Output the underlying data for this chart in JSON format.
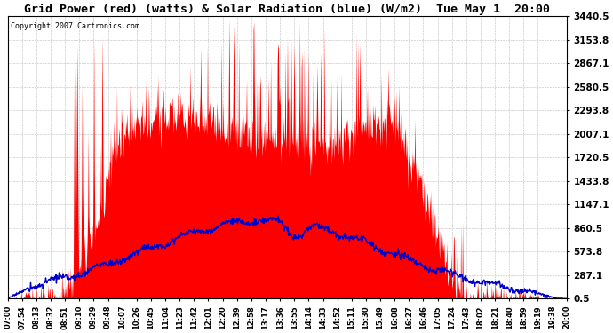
{
  "title": "Grid Power (red) (watts) & Solar Radiation (blue) (W/m2)  Tue May 1  20:00",
  "copyright_text": "Copyright 2007 Cartronics.com",
  "bg_color": "#ffffff",
  "plot_bg_color": "#ffffff",
  "grid_color": "#aaaaaa",
  "red_color": "#ff0000",
  "blue_color": "#0000cc",
  "yticks": [
    0.5,
    287.1,
    573.8,
    860.5,
    1147.1,
    1433.8,
    1720.5,
    2007.1,
    2293.8,
    2580.5,
    2867.1,
    3153.8,
    3440.5
  ],
  "ymin": 0.5,
  "ymax": 3440.5,
  "xtick_labels": [
    "07:00",
    "07:54",
    "08:13",
    "08:32",
    "08:51",
    "09:10",
    "09:29",
    "09:48",
    "10:07",
    "10:26",
    "10:45",
    "11:04",
    "11:23",
    "11:42",
    "12:01",
    "12:20",
    "12:39",
    "12:58",
    "13:17",
    "13:36",
    "13:55",
    "14:14",
    "14:33",
    "14:52",
    "15:11",
    "15:30",
    "15:49",
    "16:08",
    "16:27",
    "16:46",
    "17:05",
    "17:24",
    "17:43",
    "18:02",
    "18:21",
    "18:40",
    "18:59",
    "19:19",
    "19:38",
    "20:00"
  ],
  "n_points": 1000
}
